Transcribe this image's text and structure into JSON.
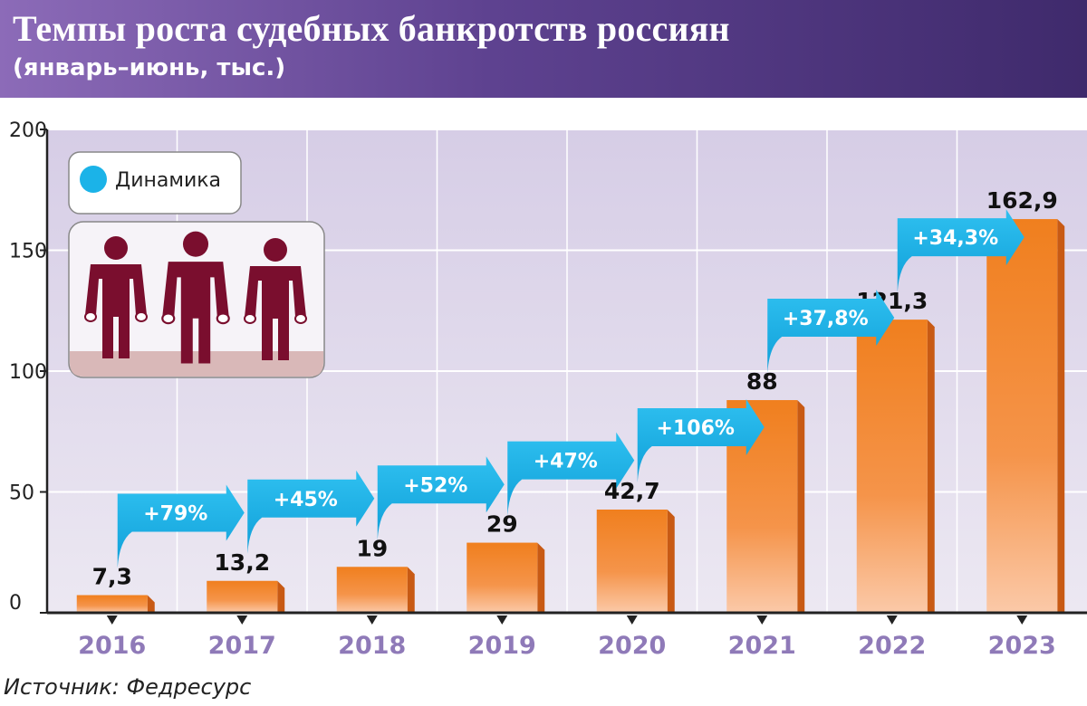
{
  "header": {
    "title": "Темпы роста судебных банкротств россиян",
    "subtitle": "(январь–июнь, тыс.)"
  },
  "legend": {
    "label": "Динамика"
  },
  "source": "Источник: Федресурс",
  "colors": {
    "bar": "#f28a2e",
    "arrow": "#1bb3e8",
    "plot_bg": "#dcd5e8",
    "figures": "#7a0e2e",
    "legend_dot": "#1bb3e8"
  },
  "chart_data": {
    "type": "bar",
    "categories": [
      "2016",
      "2017",
      "2018",
      "2019",
      "2020",
      "2021",
      "2022",
      "2023"
    ],
    "values": [
      7.3,
      13.2,
      19,
      29,
      42.7,
      88,
      121.3,
      162.9
    ],
    "value_labels": [
      "7,3",
      "13,2",
      "19",
      "29",
      "42,7",
      "88",
      "121,3",
      "162,9"
    ],
    "growth_labels": [
      "+79%",
      "+45%",
      "+52%",
      "+47%",
      "+106%",
      "+37,8%",
      "+34,3%"
    ],
    "yticks": [
      "0",
      "50",
      "100",
      "150",
      "200"
    ],
    "ylim": [
      0,
      200
    ],
    "title": "Темпы роста судебных банкротств россиян",
    "grid": true
  }
}
